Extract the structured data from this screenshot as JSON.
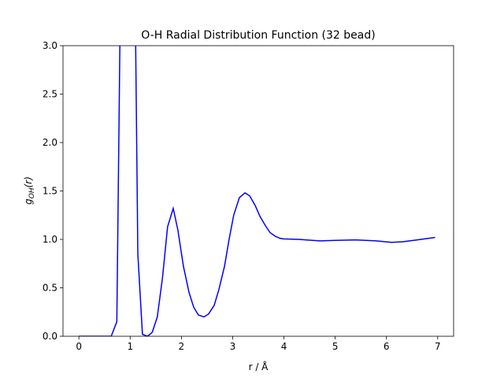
{
  "chart_data": {
    "type": "line",
    "title": "O-H Radial Distribution Function (32 bead)",
    "xlabel": "r / Å",
    "ylabel": {
      "base": "g",
      "sub": "OH",
      "tail": "(r)"
    },
    "x": [
      0,
      0.1,
      0.2,
      0.3,
      0.4,
      0.5,
      0.63,
      0.74,
      0.81,
      1.1,
      1.15,
      1.24,
      1.34,
      1.43,
      1.53,
      1.63,
      1.73,
      1.84,
      1.93,
      2.04,
      2.15,
      2.24,
      2.33,
      2.44,
      2.53,
      2.64,
      2.73,
      2.84,
      2.93,
      3.02,
      3.13,
      3.24,
      3.33,
      3.44,
      3.53,
      3.64,
      3.73,
      3.84,
      3.93,
      4.0,
      4.3,
      4.7,
      5.0,
      5.4,
      5.8,
      6.1,
      6.3,
      6.6,
      6.95
    ],
    "series": [
      {
        "name": "g_OH",
        "color": "#0000ff",
        "values": [
          0,
          0,
          0,
          0,
          0,
          0,
          0,
          0.15,
          3.5,
          3.4,
          0.85,
          0.02,
          0,
          0.04,
          0.2,
          0.6,
          1.13,
          1.32,
          1.1,
          0.72,
          0.45,
          0.3,
          0.22,
          0.2,
          0.23,
          0.32,
          0.48,
          0.72,
          1.0,
          1.25,
          1.43,
          1.48,
          1.45,
          1.35,
          1.24,
          1.14,
          1.07,
          1.03,
          1.01,
          1.005,
          1.0,
          0.985,
          0.99,
          0.995,
          0.985,
          0.97,
          0.975,
          0.995,
          1.02
        ]
      }
    ],
    "xlim": [
      -0.31,
      7.31
    ],
    "ylim": [
      0,
      3
    ],
    "xticks": [
      0,
      1,
      2,
      3,
      4,
      5,
      6,
      7
    ],
    "yticks": [
      {
        "value": 0,
        "label": "0.0"
      },
      {
        "value": 0.5,
        "label": "0.5"
      },
      {
        "value": 1,
        "label": "1.0"
      },
      {
        "value": 1.5,
        "label": "1.5"
      },
      {
        "value": 2,
        "label": "2.0"
      },
      {
        "value": 2.5,
        "label": "2.5"
      },
      {
        "value": 3,
        "label": "3.0"
      }
    ]
  }
}
